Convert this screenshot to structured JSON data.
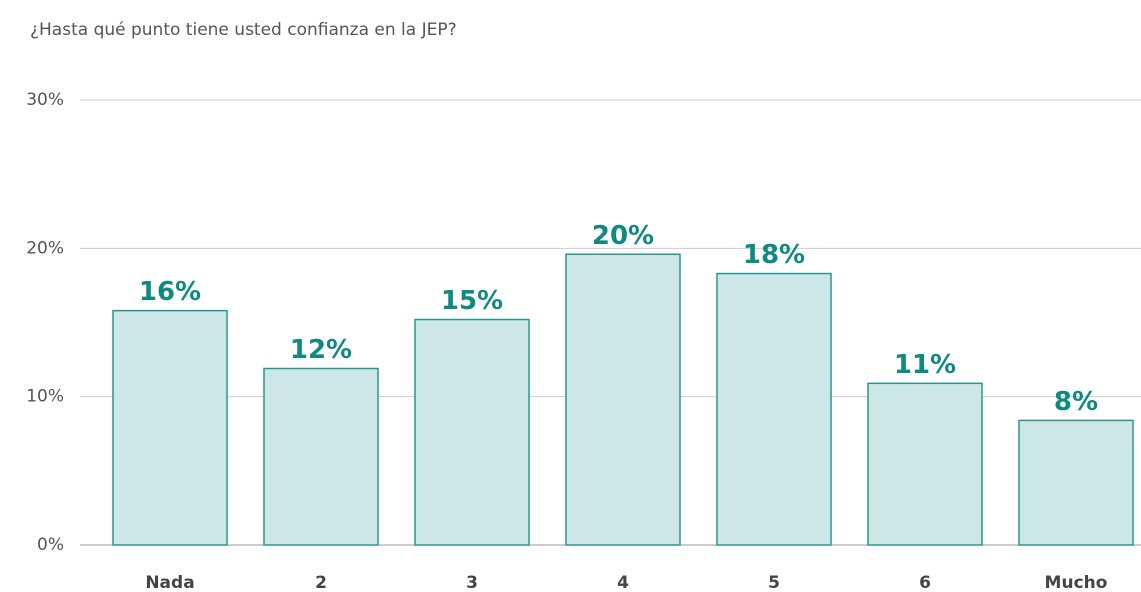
{
  "chart_data": {
    "type": "bar",
    "title": "¿Hasta qué punto tiene usted confianza en la JEP?",
    "categories": [
      "Nada",
      "2",
      "3",
      "4",
      "5",
      "6",
      "Mucho"
    ],
    "values": [
      15.8,
      11.9,
      15.2,
      19.6,
      18.3,
      10.9,
      8.4
    ],
    "value_labels": [
      "16%",
      "12%",
      "15%",
      "20%",
      "18%",
      "11%",
      "8%"
    ],
    "color": "#cde7e6",
    "edge_color": "#2a9590",
    "label_color": "#0e8a80",
    "ylim": [
      0,
      30
    ],
    "yticks": [
      {
        "value": 0,
        "label": "0%"
      },
      {
        "value": 10,
        "label": "10%"
      },
      {
        "value": 20,
        "label": "20%"
      },
      {
        "value": 30,
        "label": "30%"
      }
    ],
    "grid": true
  }
}
